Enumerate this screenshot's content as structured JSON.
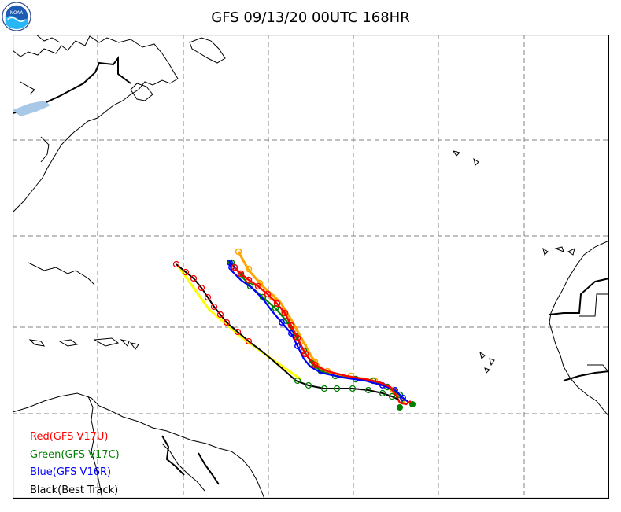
{
  "title": "GFS 09/13/20 00UTC 168HR",
  "logo": {
    "text": "NOAA",
    "icon": "noaa-logo-icon"
  },
  "legend": [
    {
      "label": "Red(GFS V17U)",
      "color": "#ff0000"
    },
    {
      "label": "Green(GFS V17C)",
      "color": "#008000"
    },
    {
      "label": "Blue(GFS V16R)",
      "color": "#0000ff"
    },
    {
      "label": "Black(Best Track)",
      "color": "#000000"
    }
  ],
  "colors": {
    "grid": "#808080",
    "coast": "#000000",
    "ensemble_orange": "#ffa500",
    "ensemble_yellow": "#ffff00"
  }
}
